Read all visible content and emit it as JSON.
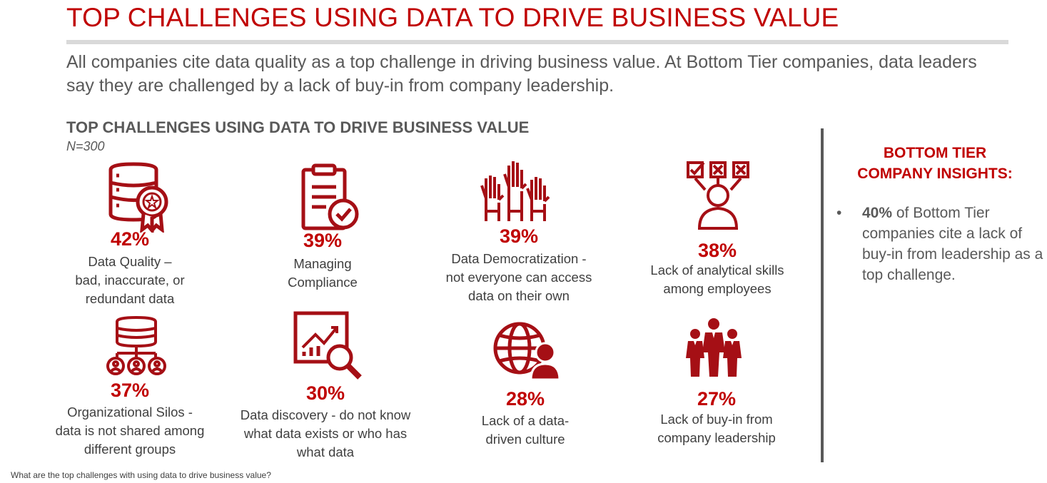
{
  "header": {
    "title": "TOP CHALLENGES USING DATA TO DRIVE BUSINESS VALUE",
    "lede": "All companies cite data quality as a top challenge in driving business value. At Bottom Tier companies, data leaders say they are challenged by a lack of buy-in from company leadership."
  },
  "section": {
    "heading": "TOP CHALLENGES USING DATA TO DRIVE BUSINESS VALUE",
    "sample": "N=300"
  },
  "colors": {
    "accent": "#c00000",
    "text": "#595959",
    "rule": "#d9d9d9"
  },
  "challenges": [
    {
      "icon": "database-award-icon",
      "value": "42%",
      "label_lines": [
        "Data Quality –",
        "bad, inaccurate, or",
        "redundant data"
      ]
    },
    {
      "icon": "clipboard-check-icon",
      "value": "39%",
      "label_lines": [
        "Managing",
        "Compliance"
      ]
    },
    {
      "icon": "raised-hands-icon",
      "value": "39%",
      "label_lines": [
        "Data Democratization -",
        "not everyone can access",
        "data on their own"
      ]
    },
    {
      "icon": "person-checkboxes-icon",
      "value": "38%",
      "label_lines": [
        "Lack of analytical skills",
        "among employees"
      ]
    },
    {
      "icon": "database-network-icon",
      "value": "37%",
      "label_lines": [
        "Organizational Silos -",
        "data is not shared among",
        "different groups"
      ]
    },
    {
      "icon": "chart-magnifier-icon",
      "value": "30%",
      "label_lines": [
        "Data discovery - do not know",
        "what data exists or who has",
        "what data"
      ]
    },
    {
      "icon": "globe-person-icon",
      "value": "28%",
      "label_lines": [
        "Lack of a data-",
        "driven culture"
      ]
    },
    {
      "icon": "business-team-icon",
      "value": "27%",
      "label_lines": [
        "Lack of buy-in from",
        "company leadership"
      ]
    }
  ],
  "insights": {
    "title_lines": [
      "BOTTOM TIER",
      "COMPANY INSIGHTS:"
    ],
    "bullet": "•",
    "items": [
      {
        "highlight": "40%",
        "text": " of Bottom Tier companies cite a lack of buy-in from leadership as a top challenge."
      }
    ]
  },
  "footnote": "What are the top challenges with using data to drive business value?"
}
